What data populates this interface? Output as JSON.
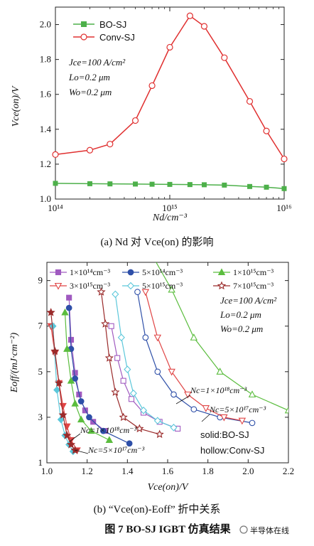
{
  "figure_caption": "图 7   BO-SJ IGBT 仿真结果",
  "watermark": "半导体在线",
  "chart_data": [
    {
      "type": "line",
      "caption": "(a)  Nd 对 Vce(on) 的影响",
      "xscale": "log",
      "xlim": [
        100000000000000.0,
        1e+16
      ],
      "ylim": [
        1.0,
        2.1
      ],
      "xlabel": "Nd/cm⁻³",
      "ylabel": "Vce(on)/V",
      "xticks": [
        {
          "v": 100000000000000.0,
          "t": "10¹⁴"
        },
        {
          "v": 1000000000000000.0,
          "t": "10¹⁵"
        },
        {
          "v": 1e+16,
          "t": "10¹⁶"
        }
      ],
      "yticks": [
        1.0,
        1.2,
        1.4,
        1.6,
        1.8,
        2.0
      ],
      "legend_position": "top-left",
      "annotation": {
        "line1": "Jce=100 A/cm²",
        "line2": "Lo=0.2 μm",
        "line3": "Wo=0.2 μm"
      },
      "series": [
        {
          "name": "BO-SJ",
          "color": "#4db04a",
          "marker": "square-filled",
          "x": [
            100000000000000.0,
            200000000000000.0,
            300000000000000.0,
            500000000000000.0,
            700000000000000.0,
            1000000000000000.0,
            1500000000000000.0,
            2000000000000000.0,
            3000000000000000.0,
            5000000000000000.0,
            7000000000000000.0,
            1e+16
          ],
          "y": [
            1.09,
            1.088,
            1.087,
            1.086,
            1.085,
            1.084,
            1.083,
            1.082,
            1.08,
            1.072,
            1.068,
            1.06
          ]
        },
        {
          "name": "Conv-SJ",
          "color": "#e03030",
          "marker": "circle-hollow",
          "x": [
            100000000000000.0,
            200000000000000.0,
            300000000000000.0,
            500000000000000.0,
            700000000000000.0,
            1000000000000000.0,
            1500000000000000.0,
            2000000000000000.0,
            3000000000000000.0,
            5000000000000000.0,
            7000000000000000.0,
            1e+16
          ],
          "y": [
            1.255,
            1.28,
            1.315,
            1.45,
            1.65,
            1.87,
            2.05,
            1.99,
            1.81,
            1.56,
            1.39,
            1.23
          ]
        }
      ]
    },
    {
      "type": "line",
      "caption": "(b)  “Vce(on)-Eoff” 折中关系",
      "xlim": [
        1.0,
        2.2
      ],
      "ylim": [
        1,
        9.8
      ],
      "xlabel": "Vce(on)/V",
      "ylabel": "Eoff/(mJ·cm⁻²)",
      "xticks": [
        1.0,
        1.2,
        1.4,
        1.6,
        1.8,
        2.0,
        2.2
      ],
      "yticks": [
        1,
        3,
        5,
        7,
        9
      ],
      "legend_position": "top",
      "annotations": {
        "conditions": [
          "Jce=100 A/cm²",
          "Lo=0.2 μm",
          "Wo=0.2 μm"
        ],
        "nc_hollow_1": "Nc=1×10¹⁸cm⁻³",
        "nc_hollow_2": "Nc=5×10¹⁷cm⁻³",
        "nc_solid_1": "Nc=1×10¹⁸cm⁻³",
        "nc_solid_2": "Nc=5×10¹⁷cm⁻³",
        "style_solid": "solid:BO-SJ",
        "style_hollow": "hollow:Conv-SJ"
      },
      "series": [
        {
          "name": "1×10¹⁴cm⁻³",
          "color": "#a05ac0",
          "marker": "square",
          "solid": {
            "x": [
              1.11,
              1.12,
              1.14,
              1.16,
              1.19,
              1.23,
              1.29
            ],
            "y": [
              8.25,
              6.4,
              4.95,
              4.0,
              3.3,
              2.8,
              2.4
            ]
          },
          "hollow": {
            "x": [
              1.32,
              1.35,
              1.38,
              1.42,
              1.48,
              1.56,
              1.65
            ],
            "y": [
              7.0,
              5.6,
              4.6,
              3.8,
              3.2,
              2.8,
              2.5
            ]
          }
        },
        {
          "name": "5×10¹⁴cm⁻³",
          "color": "#2e4fa8",
          "marker": "circle",
          "solid": {
            "x": [
              1.11,
              1.12,
              1.14,
              1.17,
              1.21,
              1.28,
              1.41
            ],
            "y": [
              7.8,
              6.0,
              4.7,
              3.7,
              3.0,
              2.4,
              1.85
            ]
          },
          "hollow": {
            "x": [
              1.45,
              1.49,
              1.55,
              1.63,
              1.73,
              1.86,
              2.02
            ],
            "y": [
              8.5,
              6.5,
              5.0,
              4.0,
              3.35,
              3.0,
              2.75
            ]
          }
        },
        {
          "name": "1×10¹⁵cm⁻³",
          "color": "#5bbd3e",
          "marker": "triangle",
          "solid": {
            "x": [
              1.09,
              1.1,
              1.12,
              1.14,
              1.17,
              1.22,
              1.31
            ],
            "y": [
              7.6,
              6.0,
              4.6,
              3.6,
              2.9,
              2.4,
              2.0
            ]
          },
          "hollow": {
            "x": [
              1.53,
              1.62,
              1.73,
              1.86,
              2.02,
              2.2
            ],
            "y": [
              10.0,
              8.6,
              6.5,
              5.0,
              4.0,
              3.3
            ]
          }
        },
        {
          "name": "3×10¹⁵cm⁻³",
          "color": "#e04545",
          "marker": "triangle-down",
          "solid": {
            "x": [
              1.02,
              1.04,
              1.06,
              1.08,
              1.1,
              1.12,
              1.15
            ],
            "y": [
              7.0,
              5.8,
              4.5,
              3.5,
              2.6,
              2.0,
              1.55
            ]
          },
          "hollow": {
            "x": [
              1.49,
              1.55,
              1.62,
              1.7,
              1.79,
              1.88,
              1.97
            ],
            "y": [
              8.5,
              6.5,
              5.0,
              4.0,
              3.4,
              3.0,
              2.85
            ]
          }
        },
        {
          "name": "5×10¹⁵cm⁻³",
          "color": "#5bc7da",
          "marker": "diamond",
          "solid": {
            "x": [
              1.03,
              1.05,
              1.07,
              1.09,
              1.11,
              1.13
            ],
            "y": [
              7.0,
              4.2,
              2.9,
              2.2,
              1.8,
              1.5
            ]
          },
          "hollow": {
            "x": [
              1.34,
              1.37,
              1.4,
              1.43,
              1.48,
              1.55,
              1.63
            ],
            "y": [
              8.4,
              6.5,
              5.1,
              4.05,
              3.3,
              2.85,
              2.55
            ]
          }
        },
        {
          "name": "7×10¹⁵cm⁻³",
          "color": "#9a2a2a",
          "marker": "star",
          "solid": {
            "x": [
              1.02,
              1.04,
              1.06,
              1.08,
              1.1,
              1.12,
              1.14
            ],
            "y": [
              7.6,
              5.9,
              4.5,
              3.1,
              2.2,
              1.8,
              1.55
            ]
          },
          "hollow": {
            "x": [
              1.27,
              1.29,
              1.31,
              1.34,
              1.38,
              1.46,
              1.56
            ],
            "y": [
              8.5,
              7.1,
              5.6,
              4.1,
              3.0,
              2.5,
              2.25
            ]
          }
        }
      ]
    }
  ]
}
